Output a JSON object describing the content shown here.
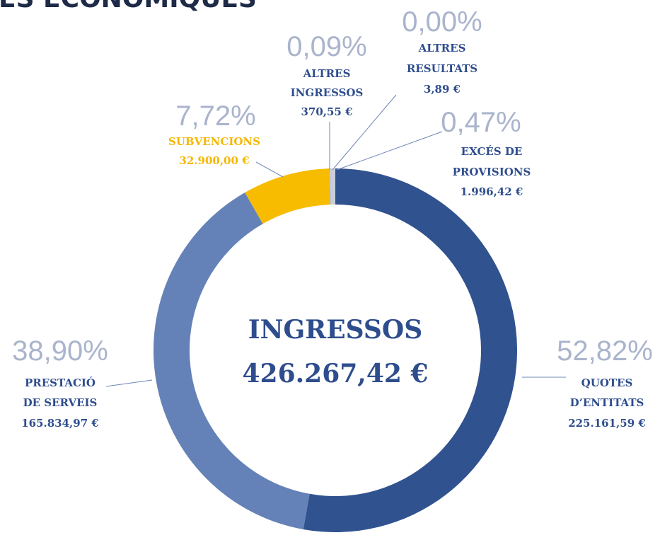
{
  "chart_data": {
    "type": "pie",
    "title": "ES ECONÒMIQUES",
    "center_label": "INGRESSOS",
    "total_label": "426.267,42 €",
    "labels": [
      [
        "QUOTES",
        "D’ENTITATS"
      ],
      [
        "PRESTACIÓ",
        "DE SERVEIS"
      ],
      [
        "SUBVENCIONS"
      ],
      [
        "ALTRES",
        "INGRESSOS"
      ],
      [
        "ALTRES",
        "RESULTATS"
      ],
      [
        "EXCÉS DE",
        "PROVISIONS"
      ]
    ],
    "values": [
      52.82,
      38.9,
      7.72,
      0.09,
      0.0,
      0.47
    ],
    "value_labels": [
      "52,82%",
      "38,90%",
      "7,72%",
      "0,09%",
      "0,00%",
      "0,47%"
    ],
    "amounts": [
      "225.161,59 €",
      "165.834,97 €",
      "32.900,00 €",
      "370,55 €",
      "3,89 €",
      "1.996,42 €"
    ],
    "colors": [
      "#30528f",
      "#6482b7",
      "#f7bb00",
      "#a9b3cc",
      "#8f99b3",
      "#c9cedb"
    ]
  }
}
